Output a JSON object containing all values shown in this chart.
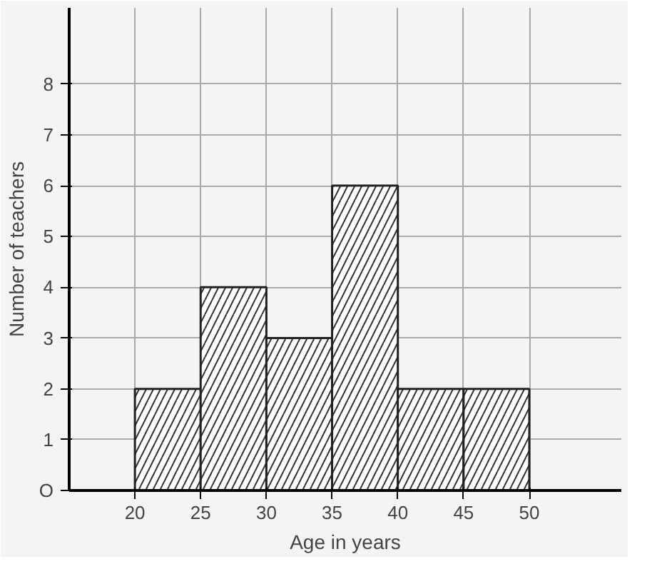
{
  "chart_data": {
    "type": "histogram",
    "xlabel": "Age in years",
    "ylabel": "Number of teachers",
    "bins": [
      20,
      25,
      30,
      35,
      40,
      45,
      50
    ],
    "values": [
      2,
      4,
      3,
      6,
      2,
      2
    ],
    "color": "#ffffff",
    "xlim": [
      15,
      57
    ],
    "ylim": [
      0,
      9.5
    ],
    "xticks": [
      20,
      25,
      30,
      35,
      40,
      45,
      50
    ],
    "yticks": [
      {
        "value": 0,
        "label": "O"
      },
      1,
      2,
      3,
      4,
      5,
      6,
      7,
      8
    ],
    "grid": true
  }
}
